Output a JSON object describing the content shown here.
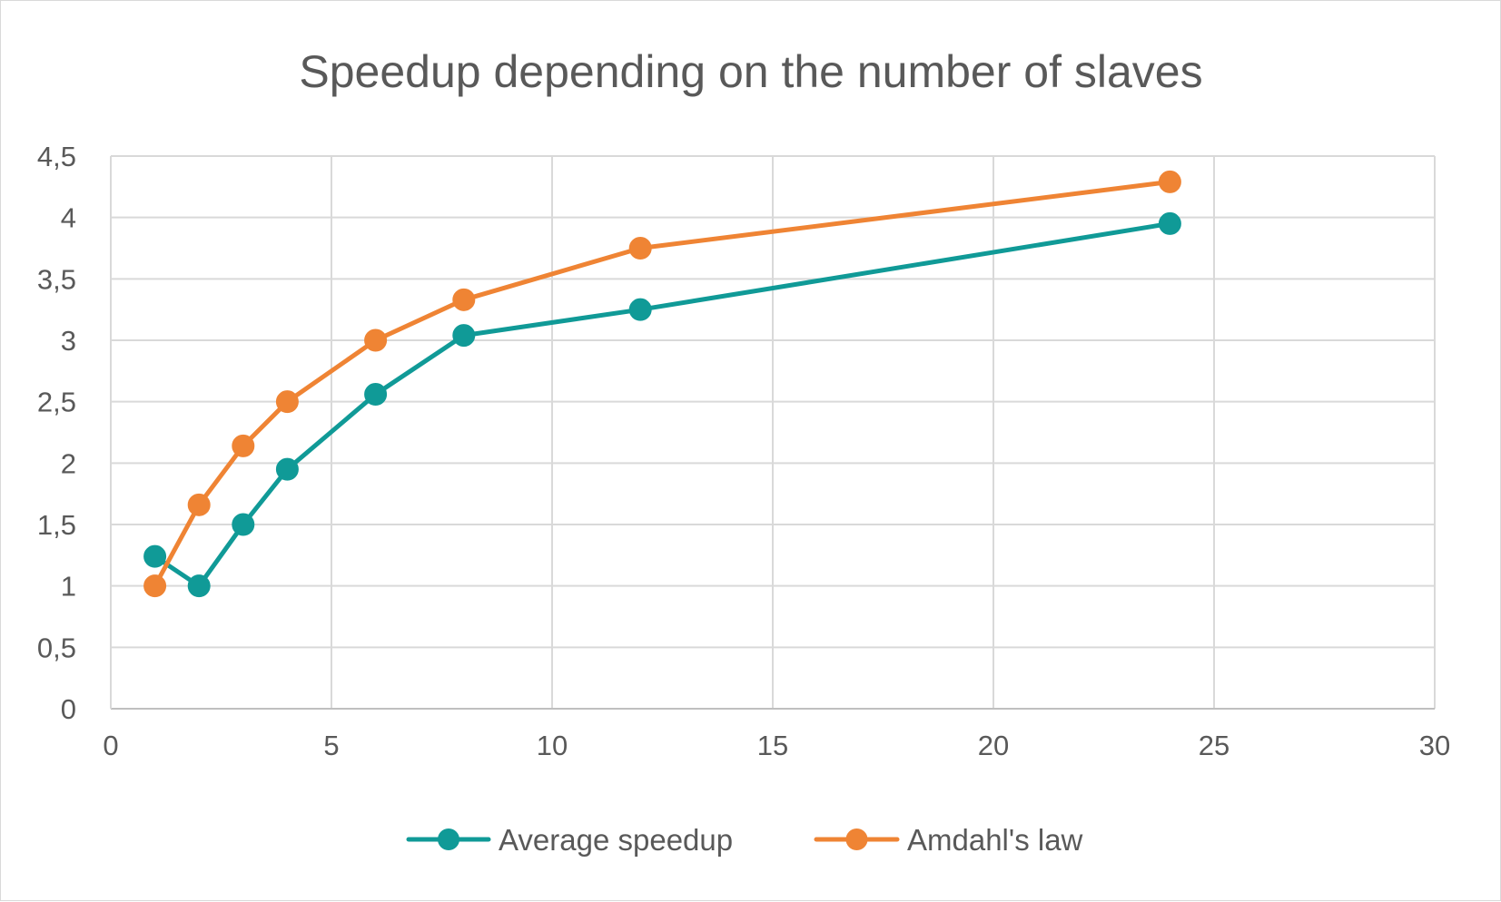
{
  "chart_data": {
    "type": "line",
    "title": "Speedup depending on the number of slaves",
    "xlabel": "",
    "ylabel": "",
    "xlim": [
      0,
      30
    ],
    "ylim": [
      0,
      4.5
    ],
    "x_ticks": [
      "0",
      "5",
      "10",
      "15",
      "20",
      "25",
      "30"
    ],
    "y_ticks": [
      "0",
      "0,5",
      "1",
      "1,5",
      "2",
      "2,5",
      "3",
      "3,5",
      "4",
      "4,5"
    ],
    "grid": true,
    "legend_position": "bottom",
    "series": [
      {
        "name": "Average speedup",
        "color": "#109a97",
        "points": [
          {
            "x": 1,
            "y": 1.24
          },
          {
            "x": 2,
            "y": 1.0
          },
          {
            "x": 3,
            "y": 1.5
          },
          {
            "x": 4,
            "y": 1.95
          },
          {
            "x": 6,
            "y": 2.56
          },
          {
            "x": 8,
            "y": 3.04
          },
          {
            "x": 12,
            "y": 3.25
          },
          {
            "x": 24,
            "y": 3.95
          }
        ]
      },
      {
        "name": "Amdahl's law",
        "color": "#ef8434",
        "points": [
          {
            "x": 1,
            "y": 1.0
          },
          {
            "x": 2,
            "y": 1.66
          },
          {
            "x": 3,
            "y": 2.14
          },
          {
            "x": 4,
            "y": 2.5
          },
          {
            "x": 6,
            "y": 3.0
          },
          {
            "x": 8,
            "y": 3.33
          },
          {
            "x": 12,
            "y": 3.75
          },
          {
            "x": 24,
            "y": 4.29
          }
        ]
      }
    ]
  }
}
